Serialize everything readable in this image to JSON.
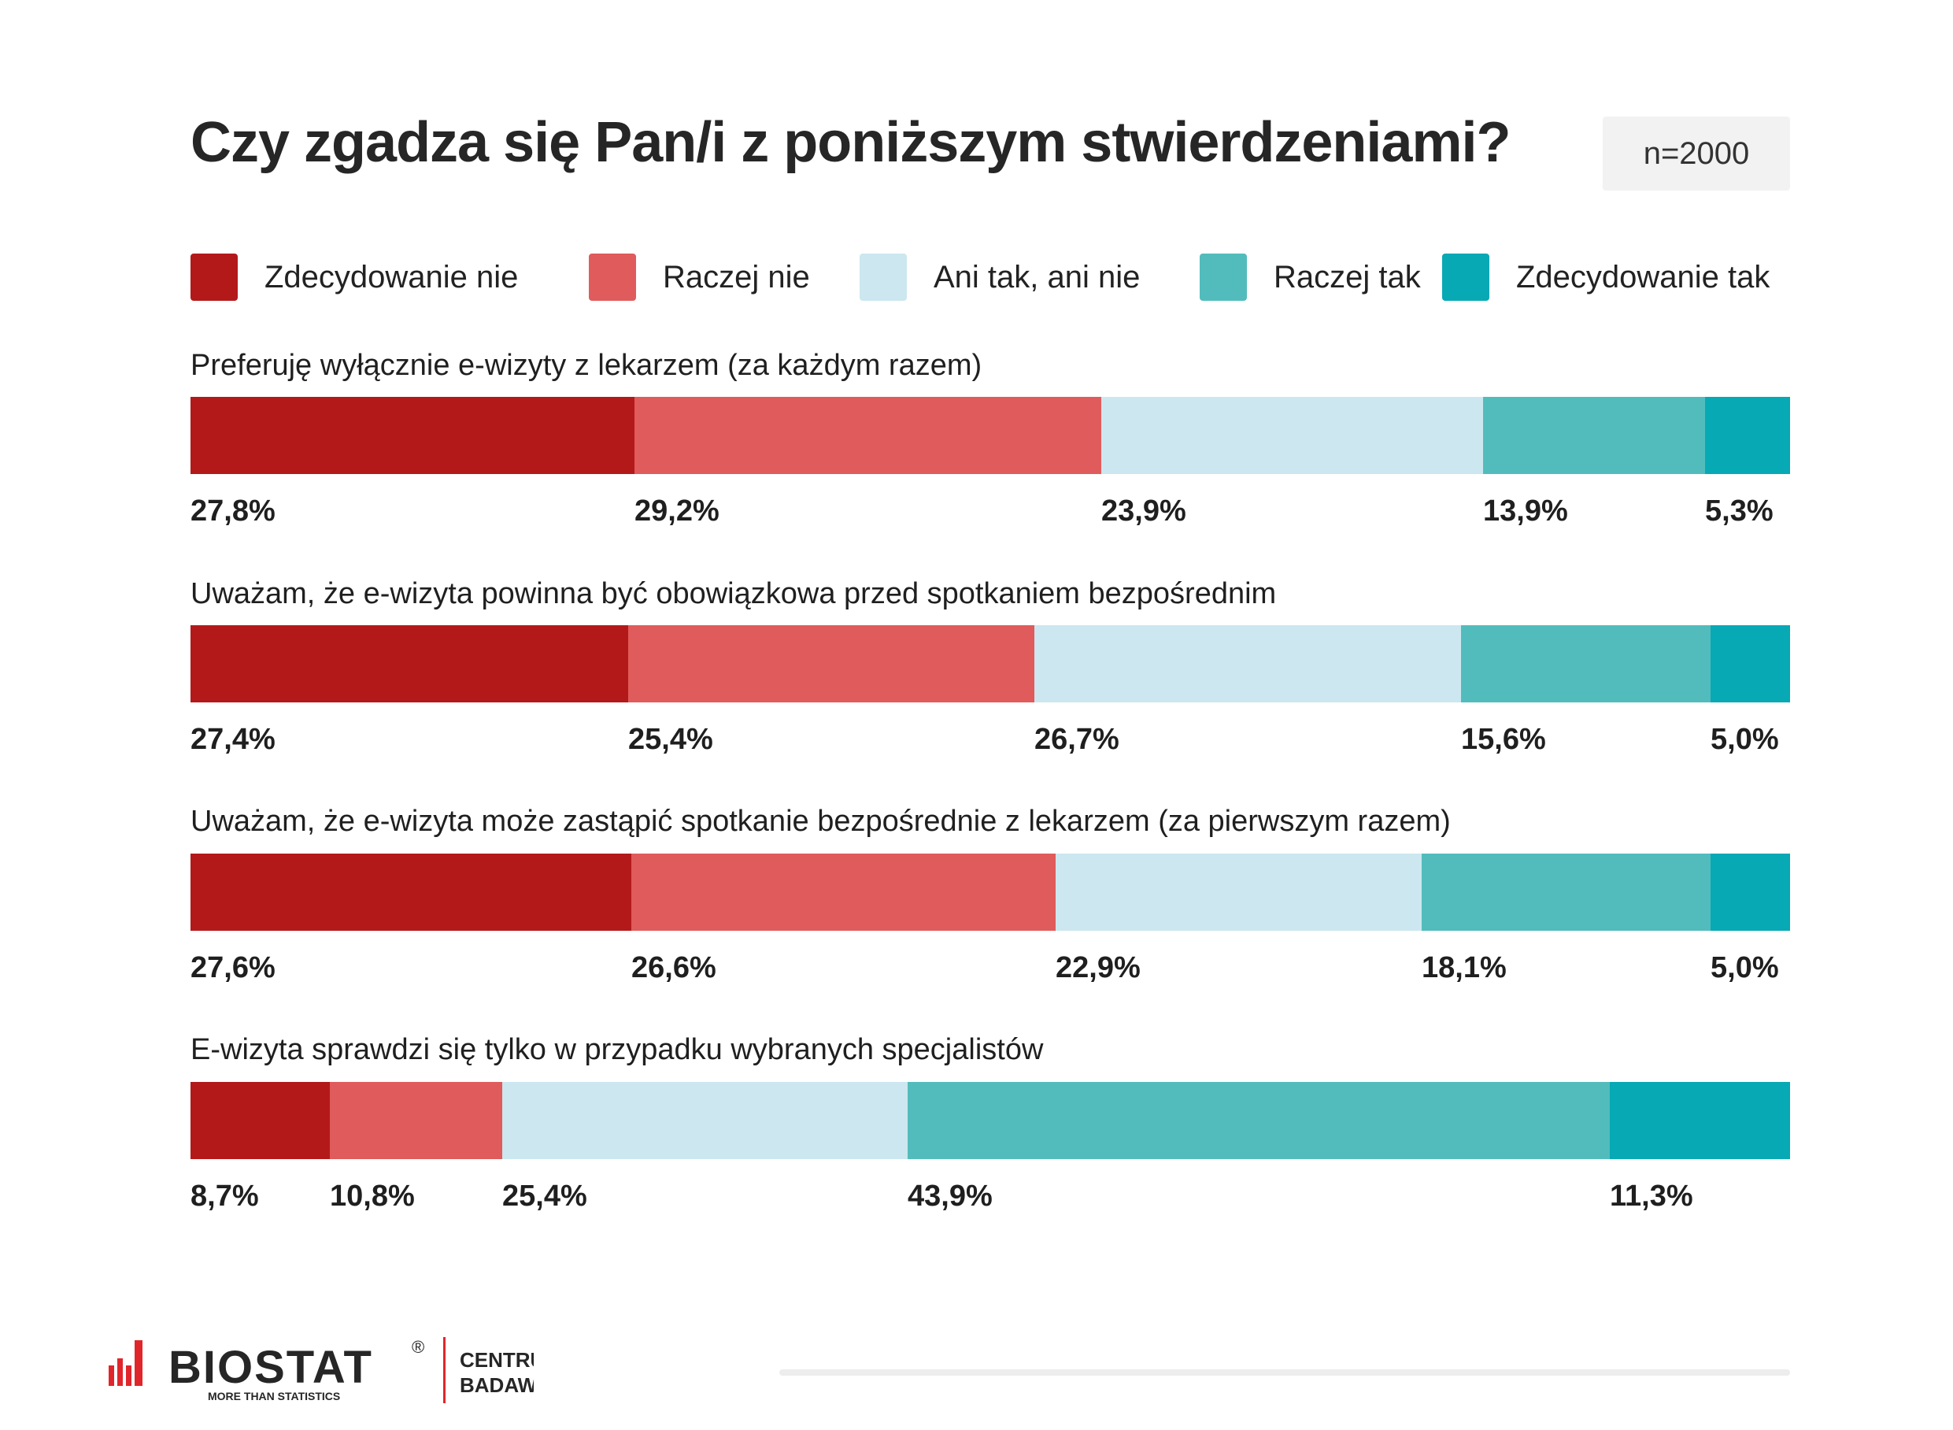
{
  "title": "Czy zgadza się Pan/i z poniższym stwierdzeniami?",
  "sample": "n=2000",
  "legend": [
    {
      "label": "Zdecydowanie nie",
      "color": "#b4191a"
    },
    {
      "label": "Raczej nie",
      "color": "#e05b5b"
    },
    {
      "label": "Ani tak, ani nie",
      "color": "#cce7ef"
    },
    {
      "label": "Raczej tak",
      "color": "#52bcbc"
    },
    {
      "label": "Zdecydowanie tak",
      "color": "#07a9b5"
    }
  ],
  "chart_data": {
    "type": "bar",
    "stacked": true,
    "orientation": "horizontal",
    "series_names": [
      "Zdecydowanie nie",
      "Raczej nie",
      "Ani tak, ani nie",
      "Raczej tak",
      "Zdecydowanie tak"
    ],
    "rows": [
      {
        "label": "Preferuję wyłącznie e-wizyty z lekarzem (za każdym razem)",
        "values": [
          27.8,
          29.2,
          23.9,
          13.9,
          5.3
        ],
        "labels": [
          "27,8%",
          "29,2%",
          "23,9%",
          "13,9%",
          "5,3%"
        ]
      },
      {
        "label": "Uważam, że e-wizyta powinna być obowiązkowa przed spotkaniem bezpośrednim",
        "values": [
          27.4,
          25.4,
          26.7,
          15.6,
          5.0
        ],
        "labels": [
          "27,4%",
          "25,4%",
          "26,7%",
          "15,6%",
          "5,0%"
        ]
      },
      {
        "label": "Uważam, że e-wizyta może zastąpić spotkanie bezpośrednie z lekarzem (za pierwszym razem)",
        "values": [
          27.6,
          26.6,
          22.9,
          18.1,
          5.0
        ],
        "labels": [
          "27,6%",
          "26,6%",
          "22,9%",
          "18,1%",
          "5,0%"
        ]
      },
      {
        "label": "E-wizyta sprawdzi się tylko w przypadku wybranych specjalistów",
        "values": [
          8.7,
          10.8,
          25.4,
          43.9,
          11.3
        ],
        "labels": [
          "8,7%",
          "10,8%",
          "25,4%",
          "43,9%",
          "11,3%"
        ]
      }
    ]
  },
  "footer": {
    "brand": "BIOSTAT",
    "registered": "®",
    "tagline": "MORE THAN STATISTICS",
    "center_line1": "CENTRUM",
    "center_line2": "BADAWCZO-ROZWOJOWE",
    "brand_color": "#e0262b"
  }
}
